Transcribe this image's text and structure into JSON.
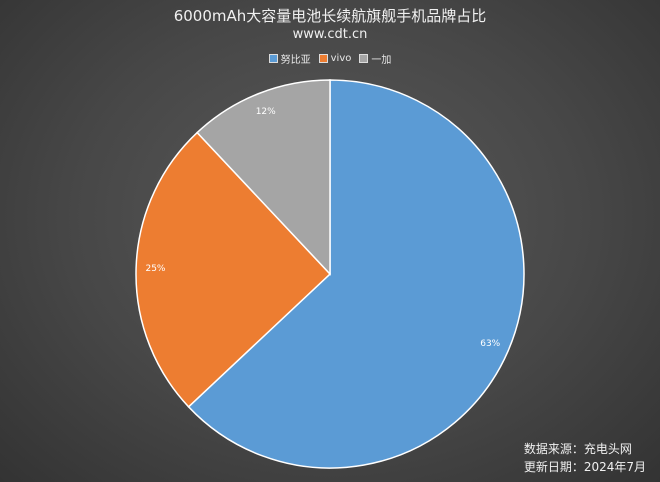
{
  "chart_data": {
    "type": "pie",
    "title": "6000mAh大容量电池长续航旗舰手机品牌占比",
    "subtitle": "www.cdt.cn",
    "legend_position": "top",
    "slices": [
      {
        "name": "努比亚",
        "value": 63,
        "label": "63%",
        "color": "#5b9bd5"
      },
      {
        "name": "vivo",
        "value": 25,
        "label": "25%",
        "color": "#ed7d31"
      },
      {
        "name": "一加",
        "value": 12,
        "label": "12%",
        "color": "#a5a5a5"
      }
    ]
  },
  "footer": {
    "source": "数据来源：充电头网",
    "updated": "更新日期：2024年7月"
  }
}
